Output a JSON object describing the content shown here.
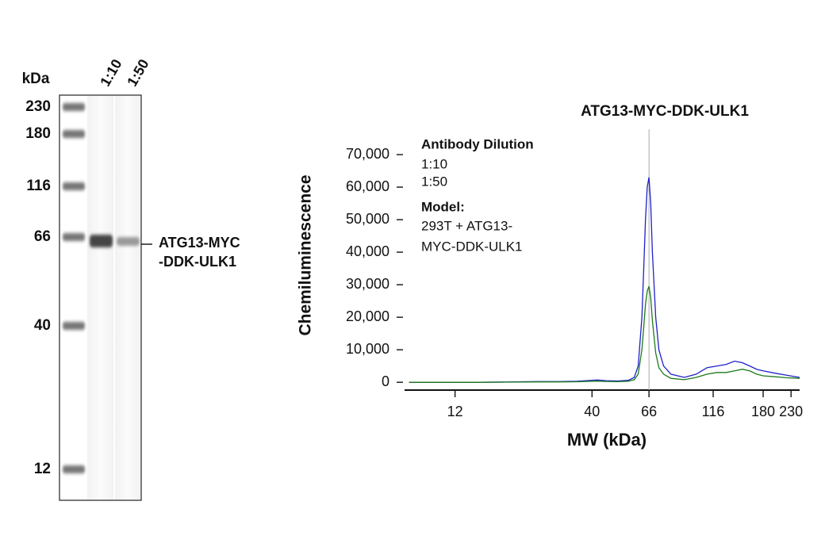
{
  "blot": {
    "unit": "kDa",
    "lanes": [
      "1:10",
      "1:50"
    ],
    "markers": [
      "230",
      "180",
      "116",
      "66",
      "40",
      "12"
    ],
    "band_label": [
      "ATG13-MYC",
      "-DDK-ULK1"
    ]
  },
  "chart_data": {
    "type": "line",
    "title": "ATG13-MYC-DDK-ULK1",
    "x_label": "MW (kDa)",
    "y_label": "Chemiluminescence",
    "legend_title": "Antibody Dilution",
    "notes": [
      "Model:",
      "293T + ATG13-",
      "MYC-DDK-ULK1"
    ],
    "x_scale": "log",
    "xlim": [
      7.7,
      248
    ],
    "xticks": [
      12,
      40,
      66,
      116,
      180,
      230
    ],
    "ylim": [
      -2400,
      72000
    ],
    "yticks": [
      0,
      {
        "value": 10000,
        "label": "10,000"
      },
      {
        "value": 20000,
        "label": "20,000"
      },
      {
        "value": 30000,
        "label": "30,000"
      },
      {
        "value": 40000,
        "label": "40,000"
      },
      {
        "value": 50000,
        "label": "50,000"
      },
      {
        "value": 60000,
        "label": "60,000"
      },
      {
        "value": 70000,
        "label": "70,000"
      }
    ],
    "x": [
      8,
      10,
      12,
      15,
      20,
      25,
      30,
      35,
      40,
      42,
      45,
      50,
      55,
      58,
      60,
      62,
      63,
      64,
      65,
      66,
      67,
      68,
      70,
      72,
      75,
      80,
      90,
      100,
      110,
      120,
      130,
      140,
      150,
      160,
      170,
      180,
      200,
      220,
      248
    ],
    "series": [
      {
        "name": "1:10",
        "color": "#1f22c8",
        "values": [
          0,
          0,
          0,
          0,
          100,
          200,
          200,
          300,
          600,
          700,
          500,
          400,
          600,
          1500,
          5000,
          20000,
          35000,
          50000,
          60000,
          63000,
          55000,
          40000,
          20000,
          10000,
          5000,
          2500,
          1500,
          2500,
          4500,
          5000,
          5500,
          6500,
          6000,
          5000,
          4000,
          3500,
          2800,
          2200,
          1500
        ]
      },
      {
        "name": "1:50",
        "color": "#1c7a1c",
        "values": [
          0,
          0,
          0,
          0,
          50,
          100,
          100,
          150,
          300,
          350,
          250,
          200,
          300,
          800,
          2500,
          10000,
          17000,
          24000,
          28000,
          29500,
          26000,
          19000,
          9000,
          4500,
          2500,
          1200,
          800,
          1500,
          2500,
          3000,
          3000,
          3500,
          4000,
          3500,
          2500,
          2000,
          1700,
          1400,
          1200
        ]
      }
    ]
  }
}
